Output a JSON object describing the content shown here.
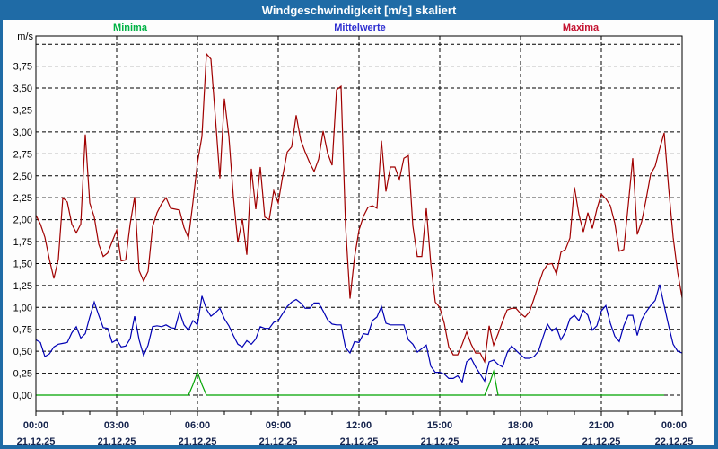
{
  "window": {
    "title": "Windgeschwindigkeit [m/s] skaliert"
  },
  "legend": [
    {
      "label": "Minima",
      "color": "#00b244"
    },
    {
      "label": "Mittelwerte",
      "color": "#2d2dd0"
    },
    {
      "label": "Maxima",
      "color": "#c41230"
    }
  ],
  "chart_data": {
    "type": "line",
    "title": "Windgeschwindigkeit [m/s] skaliert",
    "y_unit": "m/s",
    "ylabel": "m/s",
    "xlabel": "",
    "grid": true,
    "legend_position": "top",
    "ylim": [
      -0.18,
      4.1
    ],
    "y_tick_step": 0.25,
    "y_ticks": [
      "0,00",
      "0,25",
      "0,50",
      "0,75",
      "1,00",
      "1,25",
      "1,50",
      "1,75",
      "2,00",
      "2,25",
      "2,50",
      "2,75",
      "3,00",
      "3,25",
      "3,50",
      "3,75"
    ],
    "x_ticks": [
      {
        "hour": 0,
        "time": "00:00",
        "date": "21.12.25"
      },
      {
        "hour": 3,
        "time": "03:00",
        "date": "21.12.25"
      },
      {
        "hour": 6,
        "time": "06:00",
        "date": "21.12.25"
      },
      {
        "hour": 9,
        "time": "09:00",
        "date": "21.12.25"
      },
      {
        "hour": 12,
        "time": "12:00",
        "date": "21.12.25"
      },
      {
        "hour": 15,
        "time": "15:00",
        "date": "21.12.25"
      },
      {
        "hour": 18,
        "time": "18:00",
        "date": "21.12.25"
      },
      {
        "hour": 21,
        "time": "21:00",
        "date": "21.12.25"
      },
      {
        "hour": 24,
        "time": "00:00",
        "date": "22.12.25"
      }
    ],
    "x_total_minutes": 1440,
    "sample_interval_minutes": 10,
    "series": [
      {
        "name": "Minima",
        "color": "#00a400",
        "values": [
          0,
          0,
          0,
          0,
          0,
          0,
          0,
          0,
          0,
          0,
          0,
          0,
          0,
          0,
          0,
          0,
          0,
          0,
          0,
          0,
          0,
          0,
          0,
          0,
          0,
          0,
          0,
          0,
          0,
          0,
          0,
          0,
          0,
          0,
          0,
          0.12,
          0.26,
          0.12,
          0,
          0,
          0,
          0,
          0,
          0,
          0,
          0,
          0,
          0,
          0,
          0,
          0,
          0,
          0,
          0,
          0,
          0,
          0,
          0,
          0,
          0,
          0,
          0,
          0,
          0,
          0,
          0,
          0,
          0,
          0,
          0,
          0,
          0,
          0,
          0,
          0,
          0,
          0,
          0,
          0,
          0,
          0,
          0,
          0,
          0,
          0,
          0,
          0,
          0,
          0,
          0,
          0,
          0,
          0,
          0,
          0,
          0,
          0,
          0,
          0,
          0,
          0,
          0.12,
          0.27,
          0,
          0,
          0,
          0,
          0,
          0,
          0,
          0,
          0,
          0,
          0,
          0,
          0,
          0,
          0,
          0,
          0,
          0,
          0,
          0,
          0,
          0,
          0,
          0,
          0,
          0,
          0,
          0,
          0,
          0,
          0,
          0,
          0,
          0,
          0,
          0,
          0,
          0
        ]
      },
      {
        "name": "Mittelwerte",
        "color": "#0000b4",
        "values": [
          0.63,
          0.6,
          0.44,
          0.47,
          0.55,
          0.58,
          0.59,
          0.6,
          0.71,
          0.78,
          0.65,
          0.7,
          0.89,
          1.06,
          0.91,
          0.77,
          0.76,
          0.6,
          0.63,
          0.55,
          0.56,
          0.64,
          0.9,
          0.63,
          0.45,
          0.57,
          0.78,
          0.79,
          0.78,
          0.8,
          0.77,
          0.76,
          0.95,
          0.8,
          0.74,
          0.85,
          0.8,
          1.13,
          0.98,
          0.9,
          0.94,
          0.99,
          0.87,
          0.79,
          0.68,
          0.58,
          0.55,
          0.62,
          0.58,
          0.64,
          0.78,
          0.76,
          0.76,
          0.83,
          0.85,
          0.93,
          1.01,
          1.06,
          1.09,
          1.05,
          0.99,
          0.99,
          1.05,
          1.05,
          0.96,
          0.86,
          0.81,
          0.8,
          0.8,
          0.54,
          0.48,
          0.61,
          0.6,
          0.7,
          0.69,
          0.85,
          0.89,
          1.01,
          0.82,
          0.8,
          0.8,
          0.8,
          0.8,
          0.63,
          0.58,
          0.49,
          0.53,
          0.57,
          0.33,
          0.26,
          0.26,
          0.24,
          0.19,
          0.19,
          0.22,
          0.15,
          0.38,
          0.42,
          0.32,
          0.24,
          0.16,
          0.38,
          0.4,
          0.35,
          0.32,
          0.48,
          0.56,
          0.51,
          0.46,
          0.42,
          0.42,
          0.44,
          0.5,
          0.66,
          0.81,
          0.73,
          0.77,
          0.63,
          0.72,
          0.87,
          0.91,
          0.85,
          0.97,
          0.91,
          0.74,
          0.79,
          0.96,
          1.02,
          0.82,
          0.67,
          0.61,
          0.79,
          0.91,
          0.91,
          0.68,
          0.86,
          0.95,
          1.02,
          1.08,
          1.26,
          1.02,
          0.79,
          0.58,
          0.5,
          0.48
        ]
      },
      {
        "name": "Maxima",
        "color": "#a00000",
        "values": [
          2.05,
          1.95,
          1.8,
          1.55,
          1.33,
          1.55,
          2.25,
          2.2,
          1.95,
          1.85,
          1.95,
          2.97,
          2.19,
          2.03,
          1.72,
          1.58,
          1.62,
          1.75,
          1.88,
          1.53,
          1.54,
          1.95,
          2.26,
          1.42,
          1.3,
          1.41,
          1.92,
          2.08,
          2.18,
          2.25,
          2.13,
          2.12,
          2.11,
          1.91,
          1.79,
          2.2,
          2.65,
          2.95,
          3.89,
          3.83,
          3.16,
          2.47,
          3.38,
          2.95,
          2.26,
          1.74,
          2.01,
          1.6,
          2.58,
          2.12,
          2.6,
          2.03,
          2.0,
          2.33,
          2.19,
          2.5,
          2.77,
          2.83,
          3.19,
          2.91,
          2.77,
          2.65,
          2.55,
          2.69,
          3.01,
          2.76,
          2.62,
          3.48,
          3.52,
          1.93,
          1.1,
          1.57,
          1.88,
          2.04,
          2.14,
          2.16,
          2.13,
          2.9,
          2.32,
          2.6,
          2.6,
          2.46,
          2.7,
          2.73,
          1.93,
          1.58,
          1.58,
          2.13,
          1.5,
          1.06,
          1.0,
          0.82,
          0.55,
          0.46,
          0.46,
          0.58,
          0.72,
          0.58,
          0.48,
          0.48,
          0.38,
          0.79,
          0.57,
          0.7,
          0.84,
          0.97,
          0.99,
          0.99,
          0.93,
          0.89,
          0.95,
          1.1,
          1.26,
          1.41,
          1.49,
          1.5,
          1.38,
          1.63,
          1.66,
          1.79,
          2.37,
          2.06,
          1.86,
          2.08,
          1.9,
          2.12,
          2.29,
          2.24,
          2.16,
          1.96,
          1.64,
          1.66,
          2.17,
          2.7,
          1.83,
          1.98,
          2.24,
          2.52,
          2.61,
          2.81,
          2.99,
          2.36,
          1.8,
          1.4,
          1.11
        ]
      }
    ]
  }
}
